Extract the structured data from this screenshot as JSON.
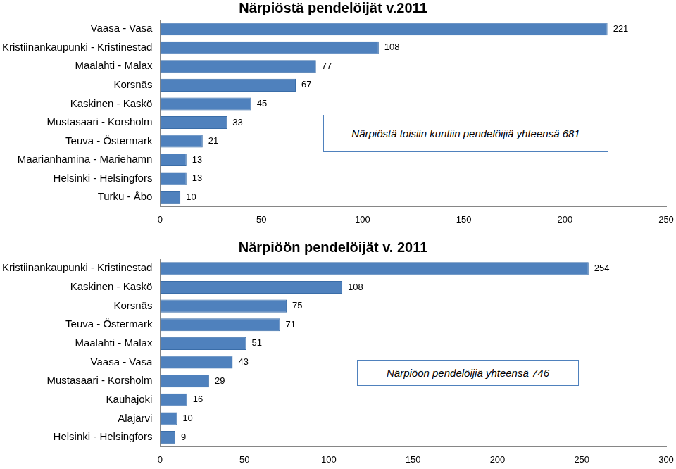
{
  "chart_data": [
    {
      "type": "bar",
      "title": "Närpiöstä pendelöijät v.2011",
      "orientation": "horizontal",
      "categories": [
        "Vaasa - Vasa",
        "Kristiinankaupunki - Kristinestad",
        "Maalahti - Malax",
        "Korsnäs",
        "Kaskinen - Kaskö",
        "Mustasaari - Korsholm",
        "Teuva - Östermark",
        "Maarianhamina - Mariehamn",
        "Helsinki - Helsingfors",
        "Turku - Åbo"
      ],
      "values": [
        221,
        108,
        77,
        67,
        45,
        33,
        21,
        13,
        13,
        10
      ],
      "color": "#4f81bd",
      "xlim": [
        0,
        250
      ],
      "xticks": [
        0,
        50,
        100,
        150,
        200,
        250
      ],
      "grid": false,
      "data_labels": true,
      "annotation": "Närpiöstä toisiin kuntiin pendelöijiä yhteensä 681"
    },
    {
      "type": "bar",
      "title": "Närpiöön pendelöijät v. 2011",
      "orientation": "horizontal",
      "categories": [
        "Kristiinankaupunki - Kristinestad",
        "Kaskinen - Kaskö",
        "Korsnäs",
        "Teuva - Östermark",
        "Maalahti - Malax",
        "Vaasa - Vasa",
        "Mustasaari - Korsholm",
        "Kauhajoki",
        "Alajärvi",
        "Helsinki - Helsingfors"
      ],
      "values": [
        254,
        108,
        75,
        71,
        51,
        43,
        29,
        16,
        10,
        9
      ],
      "color": "#4f81bd",
      "xlim": [
        0,
        300
      ],
      "xticks": [
        0,
        50,
        100,
        150,
        200,
        250,
        300
      ],
      "grid": false,
      "data_labels": true,
      "annotation": "Närpiöön pendelöijiä yhteensä 746"
    }
  ]
}
